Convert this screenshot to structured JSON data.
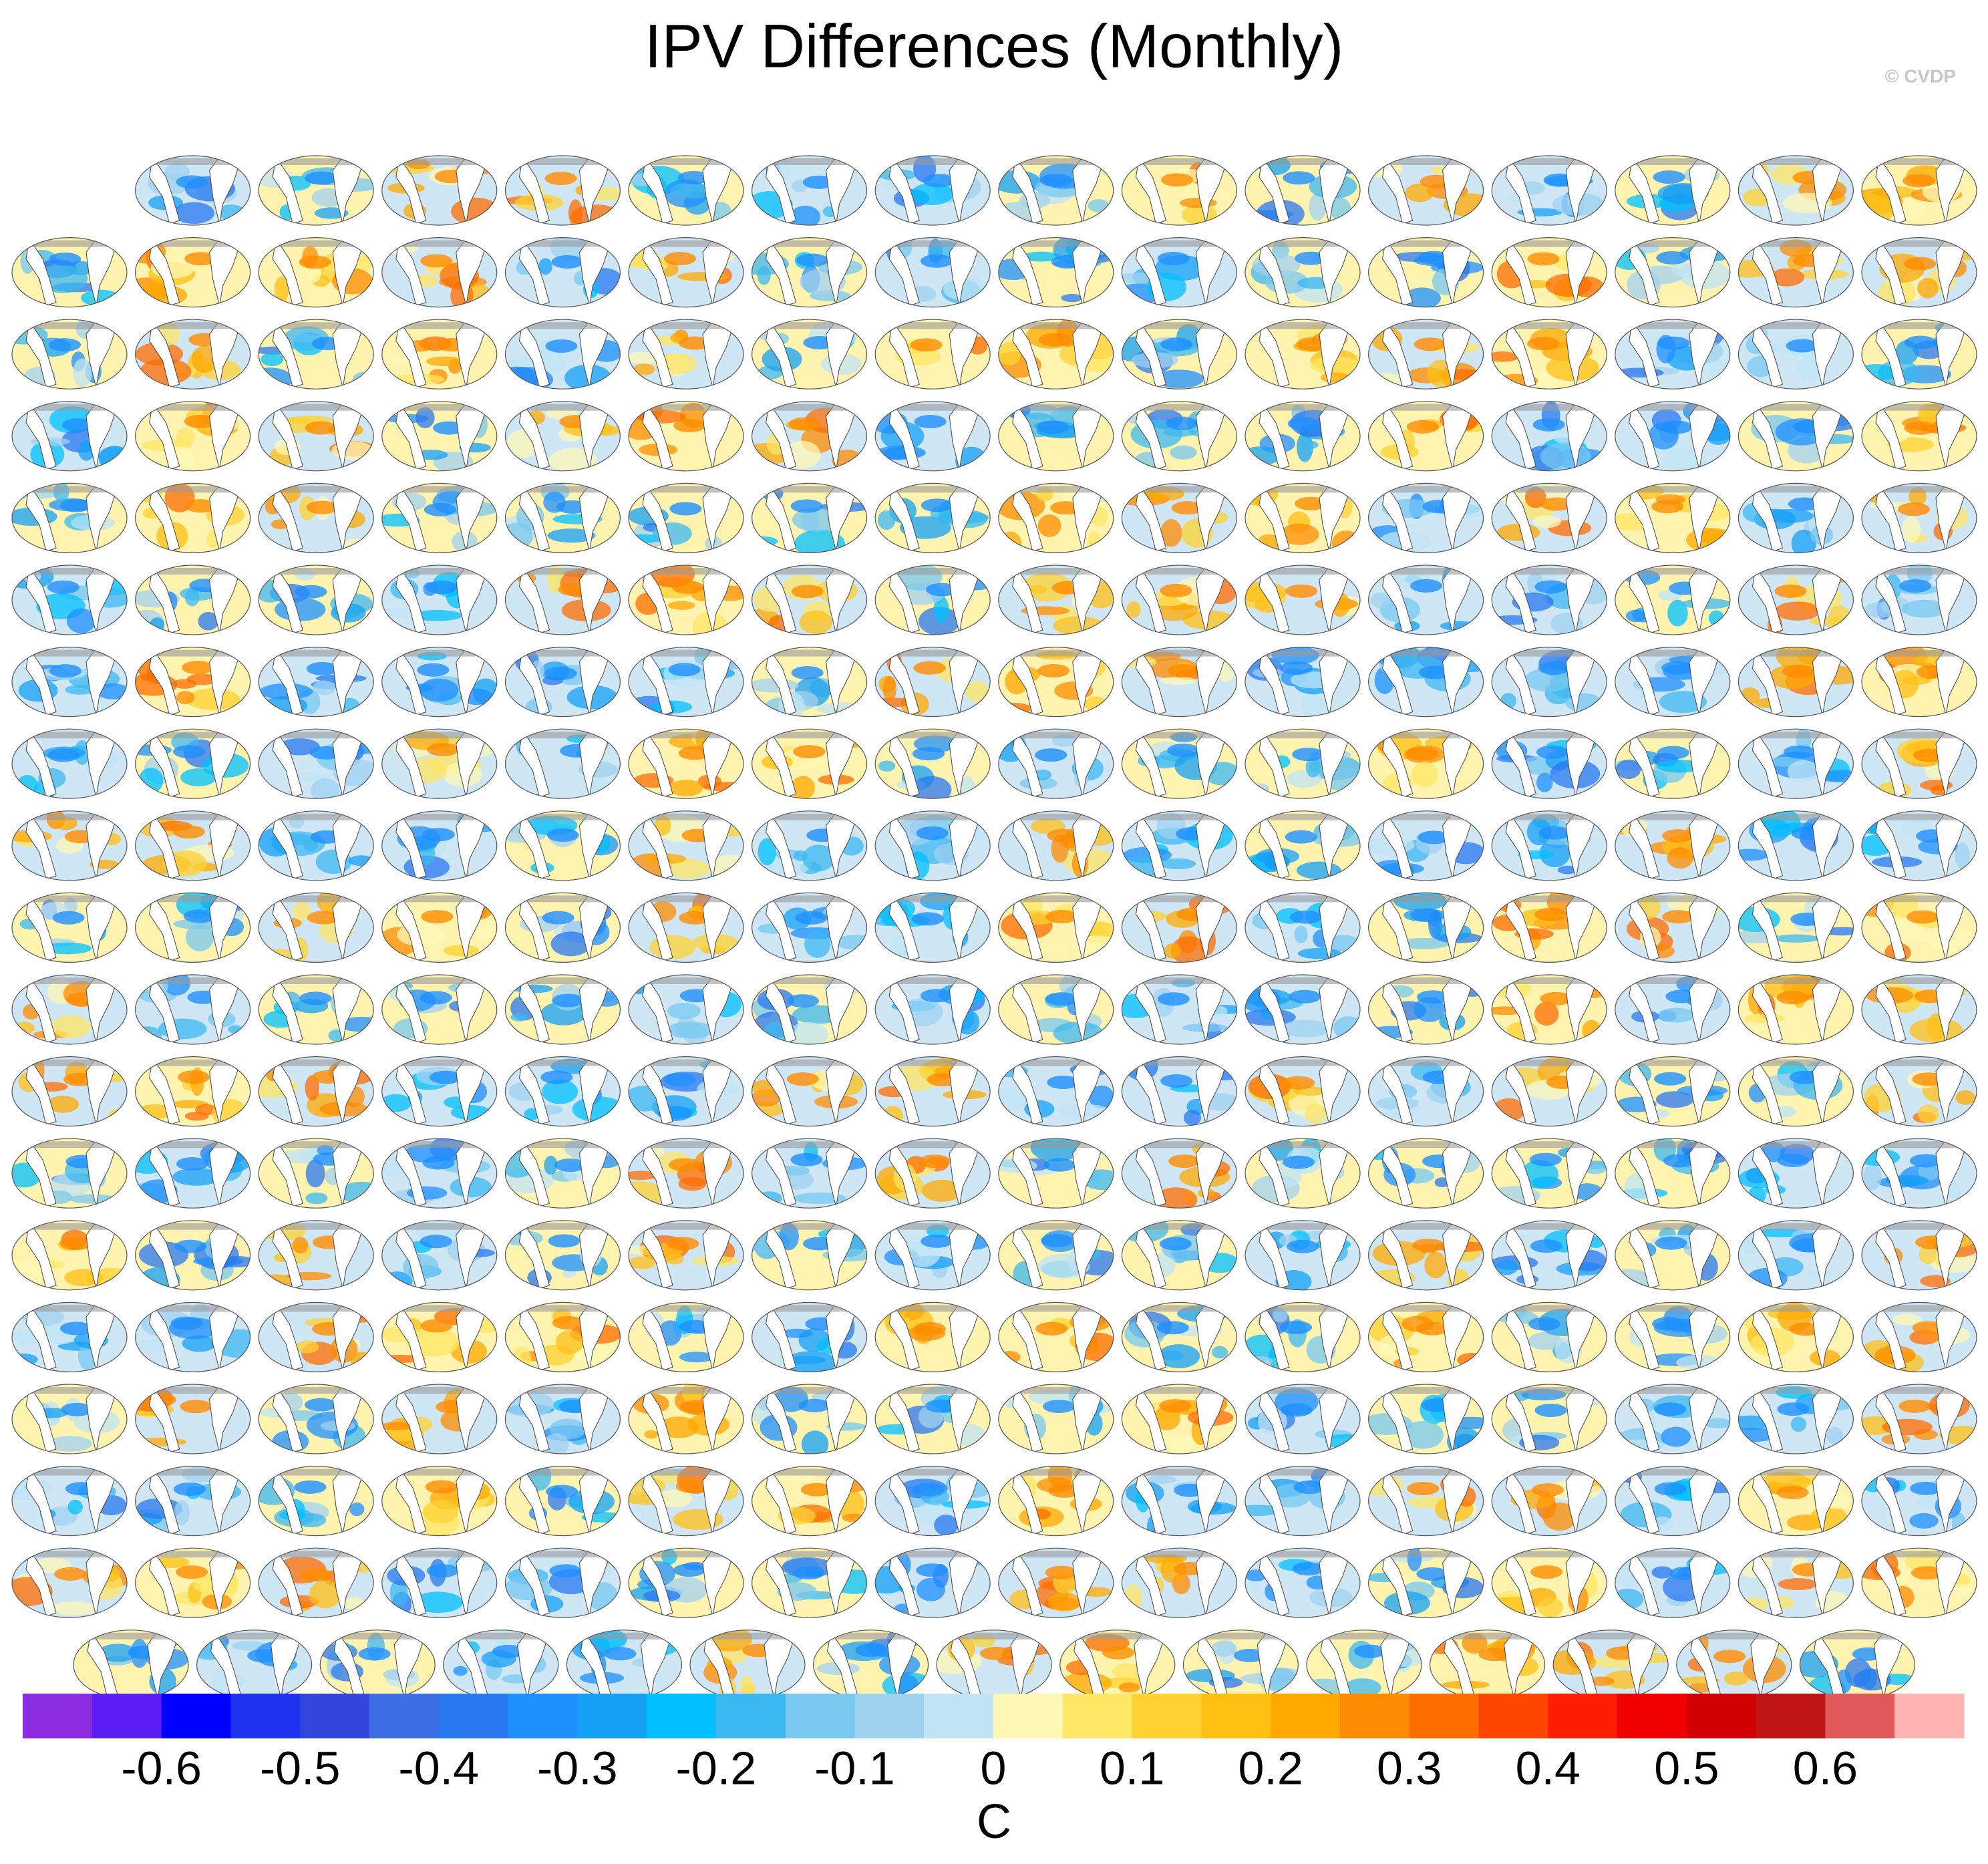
{
  "chart_data": {
    "type": "colorbar",
    "title": "IPV Differences (Monthly)",
    "annotation": "© CVDP",
    "xlabel": "C",
    "xlim": [
      -0.7,
      0.7
    ],
    "xticks": [
      -0.6,
      -0.5,
      -0.4,
      -0.3,
      -0.2,
      -0.1,
      0,
      0.1,
      0.2,
      0.3,
      0.4,
      0.5,
      0.6
    ],
    "colors": [
      "#8b2be2",
      "#5b1ef5",
      "#0000ff",
      "#1e32f0",
      "#3246dc",
      "#3c6ee6",
      "#2878f0",
      "#1e90ff",
      "#14a0f5",
      "#00c0ff",
      "#3cb8f0",
      "#78c8f0",
      "#a0d2f0",
      "#c0e4f4",
      "#fff8b4",
      "#ffe664",
      "#ffd232",
      "#ffc014",
      "#ffa800",
      "#ff8c00",
      "#ff6e00",
      "#ff4600",
      "#ff1e00",
      "#f00000",
      "#d20000",
      "#be1414",
      "#e05a5a",
      "#ffb4b4"
    ]
  }
}
